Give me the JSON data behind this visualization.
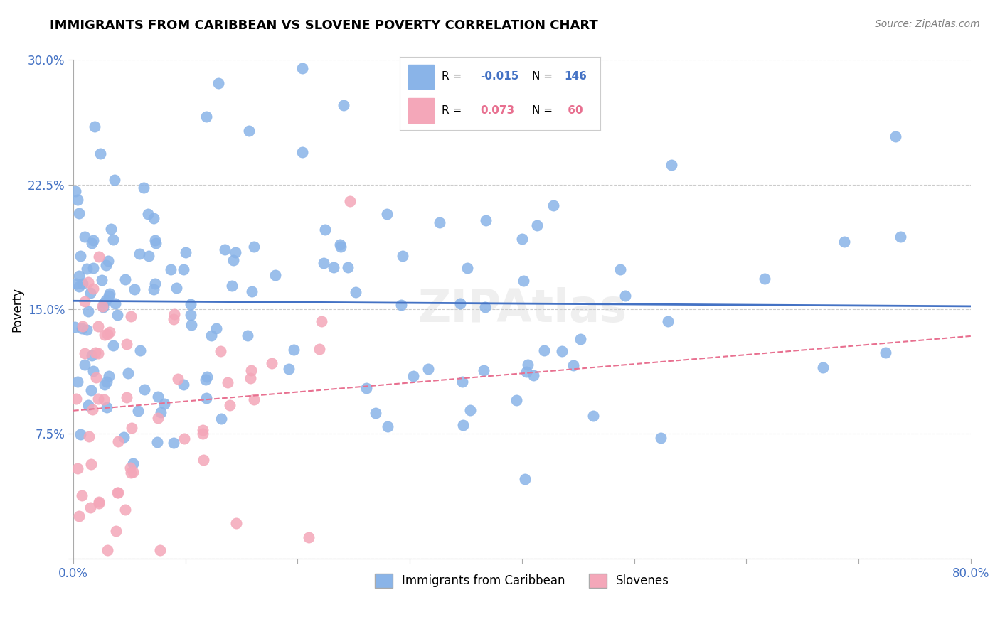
{
  "title": "IMMIGRANTS FROM CARIBBEAN VS SLOVENE POVERTY CORRELATION CHART",
  "source": "Source: ZipAtlas.com",
  "ylabel": "Poverty",
  "xlabel": "",
  "xlim": [
    0.0,
    0.8
  ],
  "ylim": [
    0.0,
    0.3
  ],
  "xticks": [
    0.0,
    0.1,
    0.2,
    0.3,
    0.4,
    0.5,
    0.6,
    0.7,
    0.8
  ],
  "xticklabels": [
    "0.0%",
    "",
    "",
    "",
    "",
    "",
    "",
    "",
    "80.0%"
  ],
  "yticks": [
    0.0,
    0.075,
    0.15,
    0.225,
    0.3
  ],
  "yticklabels": [
    "",
    "7.5%",
    "15.0%",
    "22.5%",
    "30.0%"
  ],
  "series1_color": "#8ab4e8",
  "series2_color": "#f4a7b9",
  "line1_color": "#4472c4",
  "line2_color": "#e87090",
  "R1": -0.015,
  "N1": 146,
  "R2": 0.073,
  "N2": 60,
  "series1_label": "Immigrants from Caribbean",
  "series2_label": "Slovenes",
  "grid_color": "#cccccc",
  "background_color": "#ffffff",
  "title_fontsize": 13,
  "axis_label_color": "#4472c4",
  "seed1": 42,
  "seed2": 123
}
